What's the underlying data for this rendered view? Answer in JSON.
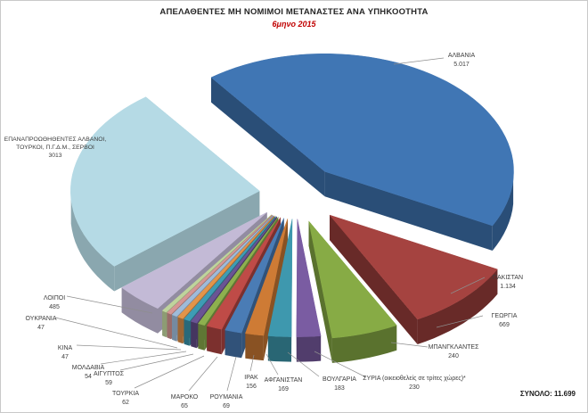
{
  "title": "ΑΠΕΛΑΘΕΝΤΕΣ ΜΗ ΝΟΜΙΜΟΙ ΜΕΤΑΝΑΣΤΕΣ ΑΝΑ ΥΠΗΚΟΟΤΗΤΑ",
  "subtitle": "6μηνο 2015",
  "total_label": "ΣΥΝΟΛΟ: 11.699",
  "chart_data": {
    "type": "pie",
    "style": "3d-exploded",
    "title": "ΑΠΕΛΑΘΕΝΤΕΣ ΜΗ ΝΟΜΙΜΟΙ ΜΕΤΑΝΑΣΤΕΣ ΑΝΑ ΥΠΗΚΟΟΤΗΤΑ",
    "subtitle": "6μηνο 2015",
    "total": 11699,
    "legend_position": "none",
    "slices": [
      {
        "label": "ΑΛΒΑΝΙΑ",
        "value": 5017,
        "display": "5.017",
        "color": "#4076B4"
      },
      {
        "label": "ΠΑΚΙΣΤΑΝ",
        "value": 1134,
        "display": "1.134",
        "color": "#A54340"
      },
      {
        "label": "ΓΕΩΡΓΙΑ",
        "value": 669,
        "display": "669",
        "color": "#87AB45"
      },
      {
        "label": "ΜΠΑΝΓΚΛΑΝΤΕΣ",
        "value": 240,
        "display": "240",
        "color": "#7A5CA2"
      },
      {
        "label": "ΣΥΡΙΑ (οικειοθελείς σε τρίτες χώρες)*",
        "value": 230,
        "display": "230",
        "color": "#3E98AE"
      },
      {
        "label": "ΒΟΥΛΓΑΡΙΑ",
        "value": 183,
        "display": "183",
        "color": "#CE7B35"
      },
      {
        "label": "ΑΦΓΑΝΙΣΤΑΝ",
        "value": 169,
        "display": "169",
        "color": "#4A7CB5"
      },
      {
        "label": "ΙΡΑΚ",
        "value": 156,
        "display": "156",
        "color": "#BF4B47"
      },
      {
        "label": "ΡΟΥΜΑΝΙΑ",
        "value": 69,
        "display": "69",
        "color": "#8DB04E"
      },
      {
        "label": "ΜΑΡΟΚΟ",
        "value": 65,
        "display": "65",
        "color": "#6A5494"
      },
      {
        "label": "ΤΟΥΡΚΙΑ",
        "value": 62,
        "display": "62",
        "color": "#3E9CB4"
      },
      {
        "label": "ΑΙΓΥΠΤΟΣ",
        "value": 59,
        "display": "59",
        "color": "#E2944A"
      },
      {
        "label": "ΜΟΛΔΑΒΙΑ",
        "value": 54,
        "display": "54",
        "color": "#9FBBD9"
      },
      {
        "label": "ΚΙΝΑ",
        "value": 47,
        "display": "47",
        "color": "#D59694"
      },
      {
        "label": "ΟΥΚΡΑΝΙΑ",
        "value": 47,
        "display": "47",
        "color": "#BFD49C"
      },
      {
        "label": "ΛΟΙΠΟΙ",
        "value": 485,
        "display": "485",
        "color": "#C3BAD6"
      },
      {
        "label": "ΕΠΑΝΑΠΡΟΩΘΗΘΕΝΤΕΣ ΑΛΒΑΝΟΙ, ΤΟΥΡΚΟΙ, Π.Γ.Δ.Μ., ΣΕΡΒΟΙ",
        "value": 3013,
        "display": "3013",
        "color": "#B5DAE5"
      }
    ]
  }
}
